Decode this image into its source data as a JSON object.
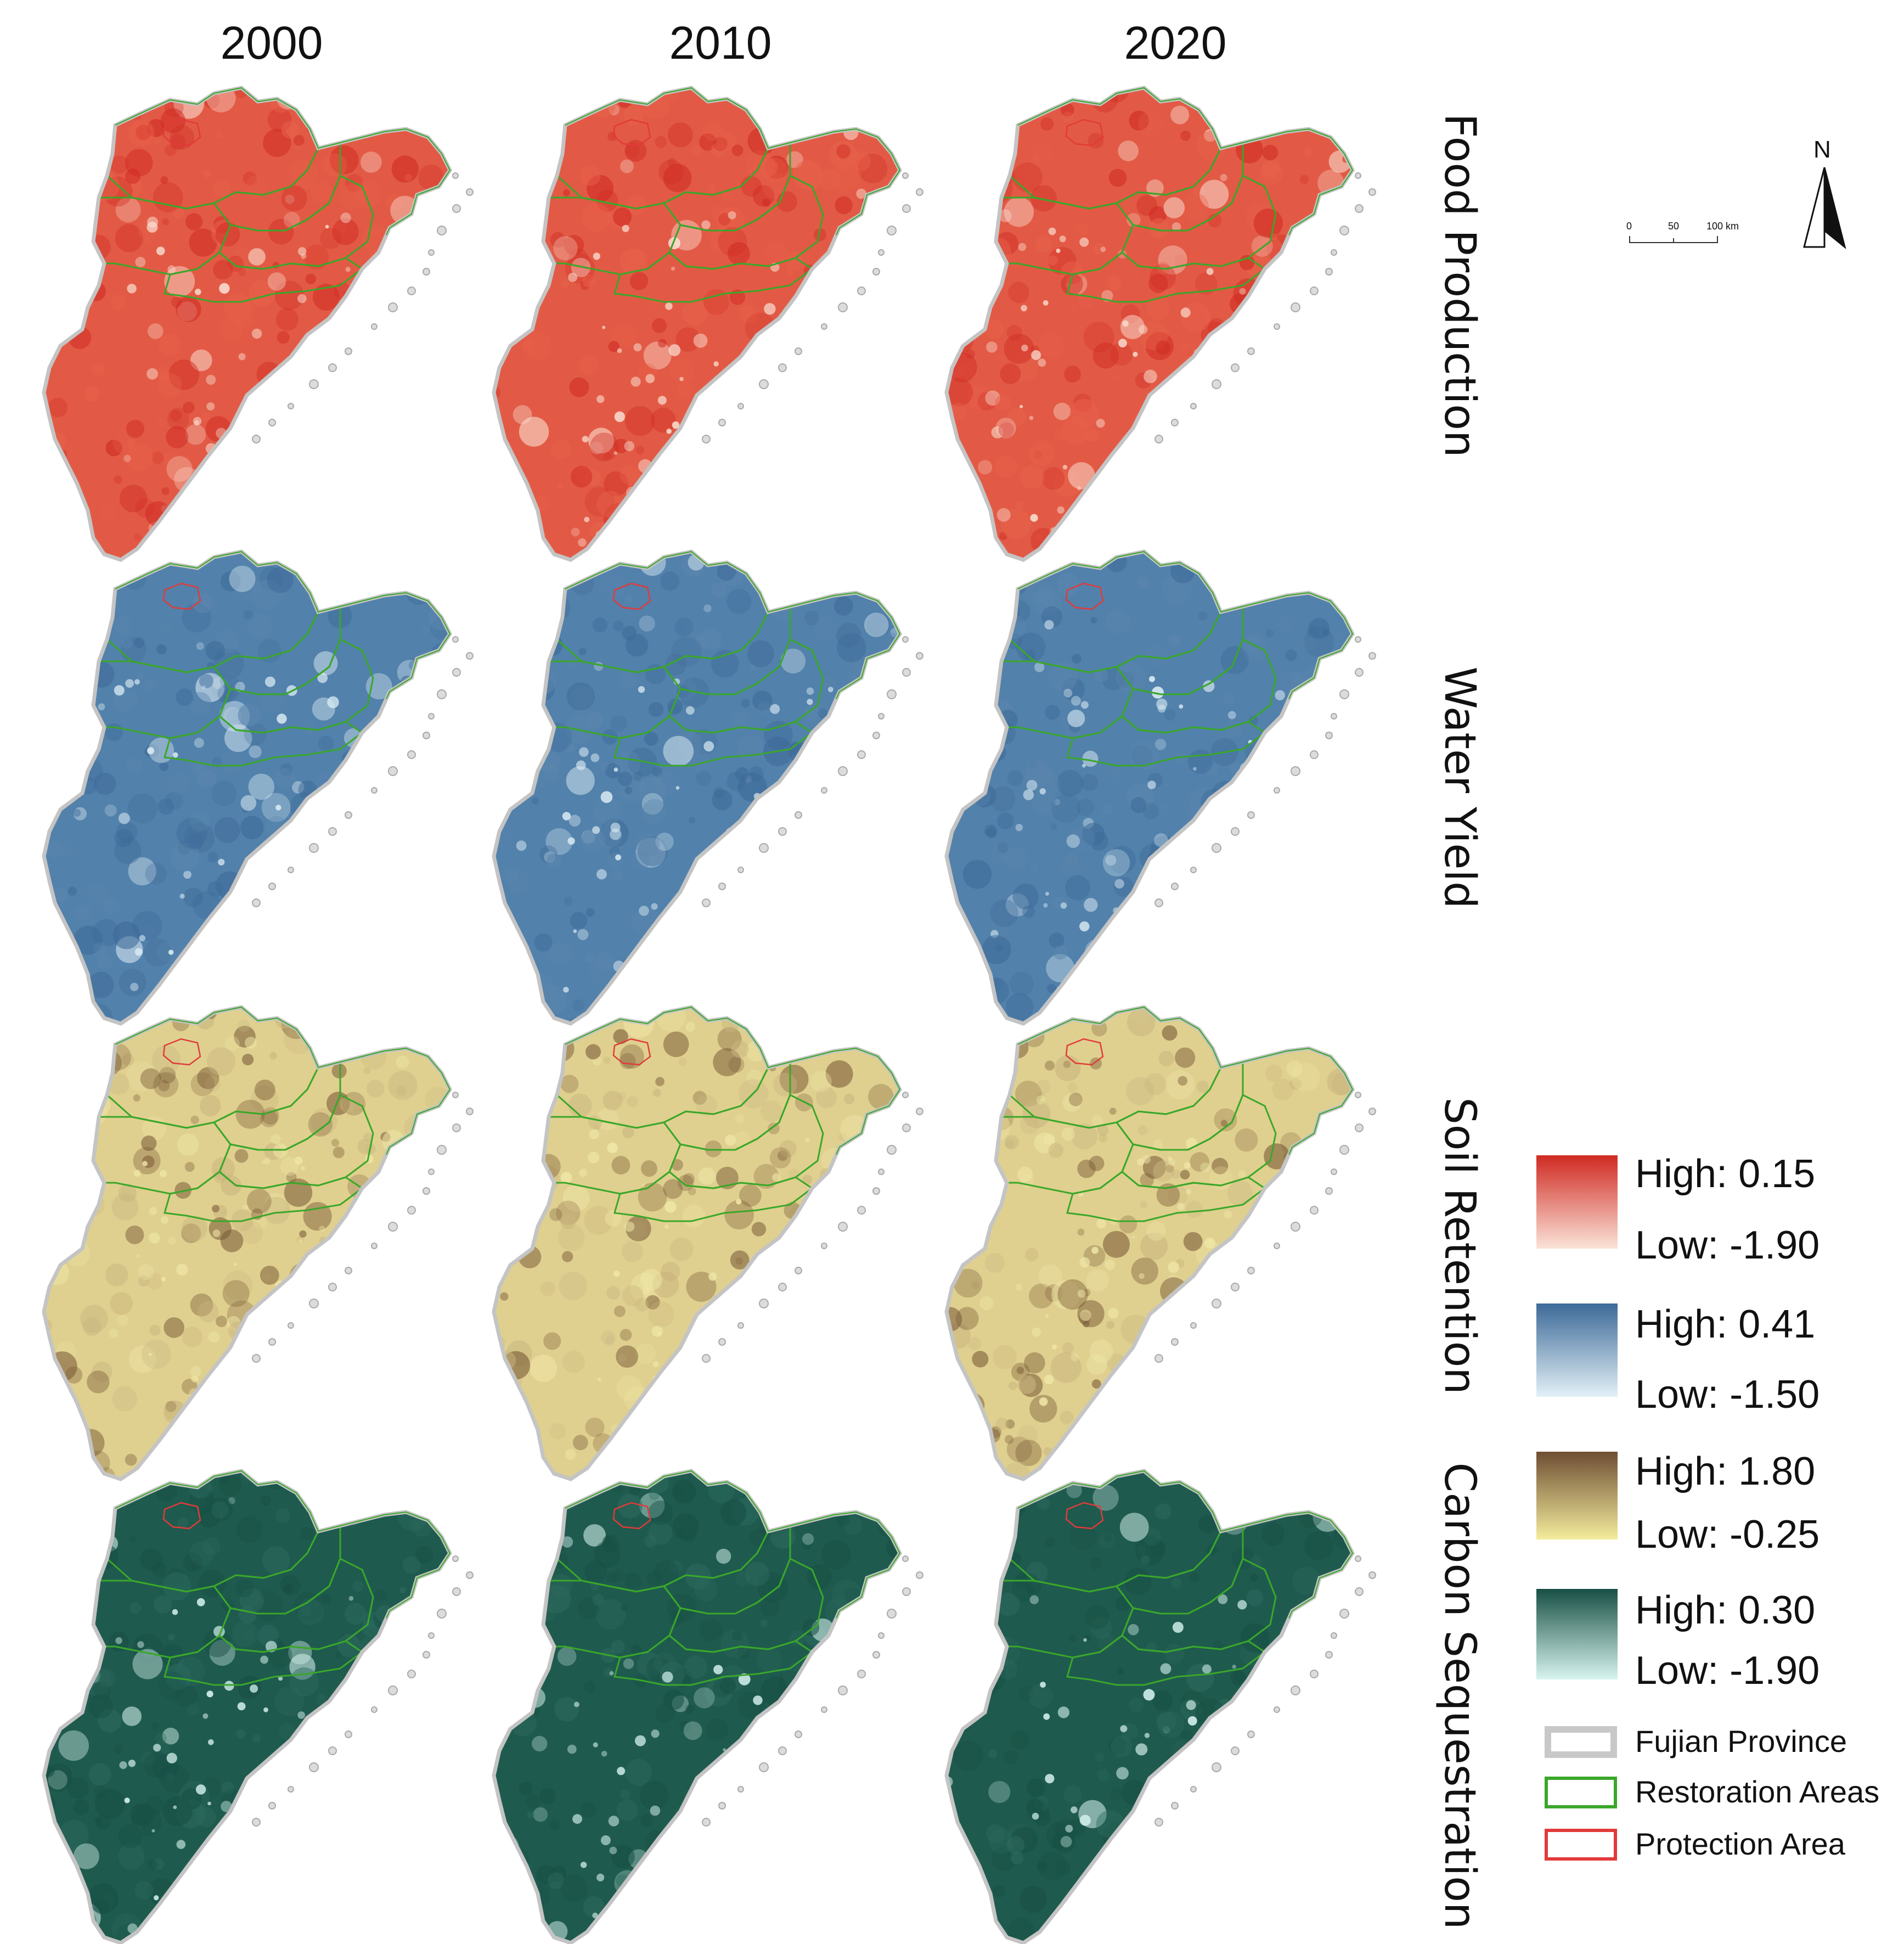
{
  "years": [
    "2000",
    "2010",
    "2020"
  ],
  "rows": [
    {
      "label": "Food Production",
      "colors": {
        "low": "#fbe0d3",
        "mid": "#e8614a",
        "base": "#e25a45",
        "high": "#cf2a22"
      }
    },
    {
      "label": "Water Yield",
      "colors": {
        "low": "#dcecf4",
        "mid": "#5b86ad",
        "base": "#5281ab",
        "high": "#3d6a98"
      }
    },
    {
      "label": "Soil Retention",
      "colors": {
        "low": "#efe6a6",
        "mid": "#c9b57e",
        "base": "#dfd08f",
        "high": "#7a5a37"
      }
    },
    {
      "label": "Carbon Sequestration",
      "colors": {
        "low": "#d6f3ef",
        "mid": "#2d6a5e",
        "base": "#1f5a4e",
        "high": "#174f44"
      }
    }
  ],
  "legend": {
    "ramps": [
      {
        "high": "High: 0.15",
        "low": "Low: -1.90",
        "top": "#cf2a22",
        "bottom": "#fbe3d8"
      },
      {
        "high": "High: 0.41",
        "low": "Low: -1.50",
        "top": "#3d6a98",
        "bottom": "#e3f0f7"
      },
      {
        "high": "High: 1.80",
        "low": "Low: -0.25",
        "top": "#6e4e33",
        "bottom": "#f4ec9c"
      },
      {
        "high": "High: 0.30",
        "low": "Low: -1.90",
        "top": "#174f44",
        "bottom": "#d8f4f0"
      }
    ],
    "keys": [
      {
        "label": "Fujian Province",
        "color": "#c8c8c8"
      },
      {
        "label": "Restoration Areas",
        "color": "#3aa72a"
      },
      {
        "label": "Protection Area",
        "color": "#e23a3a"
      }
    ]
  },
  "scale_bar": {
    "ticks": [
      "0",
      "50",
      "100 km"
    ]
  },
  "north_arrow": {
    "label": "N"
  }
}
